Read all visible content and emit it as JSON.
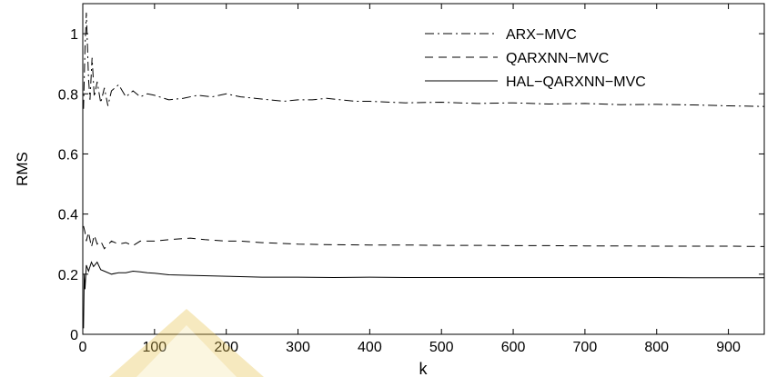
{
  "chart_data": {
    "type": "line",
    "xlabel": "k",
    "ylabel": "RMS",
    "xlim": [
      0,
      950
    ],
    "ylim": [
      0,
      1.1
    ],
    "xticks": [
      0,
      100,
      200,
      300,
      400,
      500,
      600,
      700,
      800,
      900
    ],
    "yticks": [
      0,
      0.2,
      0.4,
      0.6,
      0.8,
      1
    ],
    "ytick_labels": [
      "0",
      "0.2",
      "0.4",
      "0.6",
      "0.8",
      "1"
    ],
    "grid": false,
    "legend_position": "top-right",
    "series": [
      {
        "name": "ARX−MVC",
        "style": "dashdot",
        "color": "#000000",
        "x": [
          1,
          3,
          5,
          8,
          10,
          13,
          16,
          20,
          25,
          30,
          35,
          40,
          50,
          60,
          70,
          80,
          90,
          100,
          120,
          140,
          160,
          180,
          200,
          220,
          240,
          260,
          280,
          300,
          320,
          340,
          360,
          380,
          400,
          450,
          500,
          550,
          600,
          650,
          700,
          750,
          800,
          850,
          900,
          950
        ],
        "y": [
          0.75,
          0.95,
          1.07,
          0.85,
          0.78,
          0.92,
          0.79,
          0.84,
          0.77,
          0.82,
          0.76,
          0.81,
          0.83,
          0.79,
          0.81,
          0.79,
          0.8,
          0.795,
          0.78,
          0.785,
          0.795,
          0.79,
          0.8,
          0.79,
          0.785,
          0.78,
          0.775,
          0.78,
          0.78,
          0.785,
          0.78,
          0.775,
          0.775,
          0.77,
          0.772,
          0.768,
          0.77,
          0.766,
          0.768,
          0.764,
          0.765,
          0.763,
          0.76,
          0.758
        ]
      },
      {
        "name": "QARXNN−MVC",
        "style": "dashed",
        "color": "#000000",
        "x": [
          1,
          3,
          5,
          8,
          12,
          16,
          20,
          25,
          30,
          40,
          50,
          60,
          70,
          80,
          100,
          120,
          150,
          170,
          200,
          220,
          250,
          300,
          350,
          400,
          450,
          500,
          550,
          600,
          650,
          700,
          750,
          800,
          850,
          900,
          950
        ],
        "y": [
          0.36,
          0.34,
          0.31,
          0.34,
          0.29,
          0.33,
          0.3,
          0.31,
          0.285,
          0.31,
          0.3,
          0.305,
          0.295,
          0.31,
          0.31,
          0.315,
          0.32,
          0.315,
          0.31,
          0.31,
          0.305,
          0.3,
          0.298,
          0.297,
          0.297,
          0.296,
          0.296,
          0.295,
          0.295,
          0.294,
          0.294,
          0.293,
          0.293,
          0.293,
          0.292
        ]
      },
      {
        "name": "HAL−QARXNN−MVC",
        "style": "solid",
        "color": "#000000",
        "x": [
          1,
          2,
          3,
          5,
          8,
          12,
          15,
          20,
          25,
          30,
          40,
          50,
          60,
          70,
          80,
          90,
          100,
          120,
          150,
          200,
          250,
          300,
          350,
          400,
          450,
          500,
          550,
          600,
          650,
          700,
          750,
          800,
          850,
          900,
          950
        ],
        "y": [
          0.02,
          0.2,
          0.15,
          0.23,
          0.21,
          0.24,
          0.225,
          0.24,
          0.215,
          0.21,
          0.2,
          0.205,
          0.205,
          0.21,
          0.208,
          0.205,
          0.203,
          0.198,
          0.196,
          0.193,
          0.19,
          0.19,
          0.189,
          0.19,
          0.189,
          0.189,
          0.189,
          0.189,
          0.189,
          0.189,
          0.189,
          0.189,
          0.188,
          0.188,
          0.188
        ]
      }
    ]
  }
}
